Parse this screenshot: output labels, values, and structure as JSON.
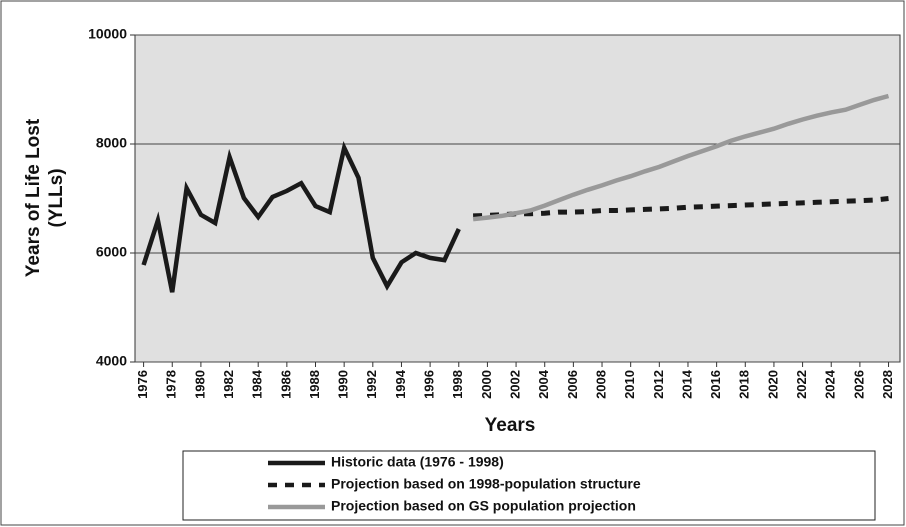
{
  "chart_data": {
    "type": "line",
    "y_label": [
      "Years of Life Lost",
      "(YLLs)"
    ],
    "x_label": "Years",
    "xlim": [
      1975.4,
      2028.8
    ],
    "xticks": [
      1976,
      1978,
      1980,
      1982,
      1984,
      1986,
      1988,
      1990,
      1992,
      1994,
      1996,
      1998,
      2000,
      2002,
      2004,
      2006,
      2008,
      2010,
      2012,
      2014,
      2016,
      2018,
      2020,
      2022,
      2024,
      2026,
      2028
    ],
    "ylim": [
      4000,
      10000
    ],
    "yticks": [
      4000,
      6000,
      8000,
      10000
    ],
    "grid": true,
    "legend": "bottom",
    "series": [
      {
        "name": "Historic data (1976 - 1998)",
        "color": "#1a1a1a",
        "dash": "solid",
        "x": [
          1976,
          1977,
          1978,
          1979,
          1980,
          1981,
          1982,
          1983,
          1984,
          1985,
          1986,
          1987,
          1988,
          1989,
          1990,
          1991,
          1992,
          1993,
          1994,
          1995,
          1996,
          1997,
          1998
        ],
        "values": [
          5780,
          6600,
          5280,
          7190,
          6700,
          6550,
          7760,
          7010,
          6660,
          7030,
          7140,
          7280,
          6860,
          6750,
          7930,
          7380,
          5910,
          5390,
          5830,
          6000,
          5910,
          5870,
          6440
        ]
      },
      {
        "name": "Projection based on 1998-population structure",
        "color": "#1a1a1a",
        "dash": "dashed",
        "x": [
          1999,
          2000,
          2001,
          2002,
          2003,
          2004,
          2005,
          2006,
          2007,
          2008,
          2009,
          2010,
          2011,
          2012,
          2013,
          2014,
          2015,
          2016,
          2017,
          2018,
          2019,
          2020,
          2021,
          2022,
          2023,
          2024,
          2025,
          2026,
          2027,
          2028
        ],
        "values": [
          6680,
          6690,
          6700,
          6720,
          6720,
          6730,
          6750,
          6750,
          6760,
          6780,
          6780,
          6790,
          6800,
          6810,
          6820,
          6840,
          6850,
          6860,
          6870,
          6880,
          6890,
          6900,
          6910,
          6920,
          6930,
          6940,
          6950,
          6960,
          6970,
          7000
        ]
      },
      {
        "name": "Projection based on GS population projection",
        "color": "#999999",
        "dash": "solid",
        "x": [
          1999,
          2000,
          2001,
          2002,
          2003,
          2004,
          2005,
          2006,
          2007,
          2008,
          2009,
          2010,
          2011,
          2012,
          2013,
          2014,
          2015,
          2016,
          2017,
          2018,
          2019,
          2020,
          2021,
          2022,
          2023,
          2024,
          2025,
          2026,
          2027,
          2028
        ],
        "values": [
          6620,
          6650,
          6680,
          6730,
          6780,
          6870,
          6970,
          7070,
          7160,
          7240,
          7330,
          7410,
          7500,
          7580,
          7680,
          7780,
          7870,
          7960,
          8060,
          8140,
          8210,
          8280,
          8370,
          8450,
          8520,
          8580,
          8630,
          8720,
          8810,
          8880
        ]
      }
    ]
  }
}
